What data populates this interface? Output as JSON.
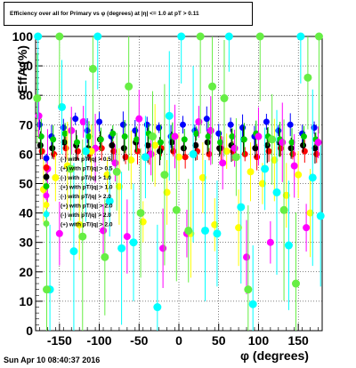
{
  "title_text": "Efficiency over all for Primary vs φ (degrees) at |η| <= 1.0 at pT > 0.11",
  "footer": "Sun Apr 10 08:40:37 2016",
  "chart_data": {
    "type": "scatter",
    "title": "Efficiency over all for Primary vs φ (degrees) at |η| <= 1.0 at pT > 0.11",
    "xlabel": "φ (degrees)",
    "ylabel": "EffA (%)",
    "xlim": [
      -180,
      180
    ],
    "ylim": [
      0,
      100
    ],
    "x_ticks": [
      -150,
      -100,
      -50,
      0,
      50,
      100,
      150
    ],
    "y_ticks": [
      0,
      10,
      20,
      30,
      40,
      50,
      60,
      70,
      80,
      90,
      100
    ],
    "grid": true,
    "legend_position": "left, inside plot",
    "series": [
      {
        "name": "(-) with pT/|q| > 0.5",
        "color": "#0000ff",
        "points": [
          [
            -175,
            70
          ],
          [
            -160,
            66
          ],
          [
            -145,
            69
          ],
          [
            -130,
            72
          ],
          [
            -115,
            68
          ],
          [
            -100,
            71
          ],
          [
            -85,
            66
          ],
          [
            -70,
            70
          ],
          [
            -55,
            68
          ],
          [
            -40,
            70
          ],
          [
            -25,
            69
          ],
          [
            -10,
            66
          ],
          [
            5,
            70
          ],
          [
            20,
            68
          ],
          [
            35,
            72
          ],
          [
            50,
            67
          ],
          [
            65,
            70
          ],
          [
            80,
            69
          ],
          [
            95,
            66
          ],
          [
            110,
            71
          ],
          [
            125,
            68
          ],
          [
            140,
            70
          ],
          [
            155,
            67
          ],
          [
            170,
            69
          ]
        ]
      },
      {
        "name": "(+) with pT/|q| > 0.5",
        "color": "#ff0000",
        "points": [
          [
            -172,
            61
          ],
          [
            -157,
            60
          ],
          [
            -142,
            62
          ],
          [
            -127,
            61
          ],
          [
            -112,
            60
          ],
          [
            -97,
            62
          ],
          [
            -82,
            61
          ],
          [
            -67,
            59
          ],
          [
            -52,
            61
          ],
          [
            -37,
            60
          ],
          [
            -22,
            62
          ],
          [
            -7,
            61
          ],
          [
            8,
            59
          ],
          [
            23,
            61
          ],
          [
            38,
            60
          ],
          [
            53,
            62
          ],
          [
            68,
            61
          ],
          [
            83,
            60
          ],
          [
            98,
            59
          ],
          [
            113,
            61
          ],
          [
            128,
            62
          ],
          [
            143,
            60
          ],
          [
            158,
            61
          ],
          [
            173,
            60
          ]
        ]
      },
      {
        "name": "(-) with pT/|q| > 1.0",
        "color": "#000000",
        "points": [
          [
            -174,
            63
          ],
          [
            -159,
            62
          ],
          [
            -144,
            64
          ],
          [
            -129,
            63
          ],
          [
            -114,
            62
          ],
          [
            -99,
            65
          ],
          [
            -84,
            63
          ],
          [
            -69,
            62
          ],
          [
            -54,
            64
          ],
          [
            -39,
            63
          ],
          [
            -24,
            61
          ],
          [
            -9,
            64
          ],
          [
            6,
            62
          ],
          [
            21,
            63
          ],
          [
            36,
            64
          ],
          [
            51,
            62
          ],
          [
            66,
            63
          ],
          [
            81,
            65
          ],
          [
            96,
            62
          ],
          [
            111,
            63
          ],
          [
            126,
            64
          ],
          [
            141,
            62
          ],
          [
            156,
            63
          ],
          [
            171,
            62
          ]
        ]
      },
      {
        "name": "(+) with pT/|q| > 1.0",
        "color": "#00cc00",
        "points": [
          [
            -173,
            66
          ],
          [
            -158,
            65
          ],
          [
            -143,
            67
          ],
          [
            -128,
            64
          ],
          [
            -113,
            66
          ],
          [
            -98,
            65
          ],
          [
            -83,
            67
          ],
          [
            -68,
            66
          ],
          [
            -53,
            65
          ],
          [
            -38,
            67
          ],
          [
            -23,
            64
          ],
          [
            -8,
            66
          ],
          [
            7,
            65
          ],
          [
            22,
            67
          ],
          [
            37,
            66
          ],
          [
            52,
            64
          ],
          [
            67,
            66
          ],
          [
            82,
            65
          ],
          [
            97,
            67
          ],
          [
            112,
            66
          ],
          [
            127,
            65
          ],
          [
            142,
            64
          ],
          [
            157,
            66
          ],
          [
            172,
            65
          ]
        ]
      },
      {
        "name": "(-) with pT/|q| > 2.0",
        "color": "#ff00ff",
        "points": [
          [
            -176,
            73
          ],
          [
            -165,
            55
          ],
          [
            -150,
            33
          ],
          [
            -135,
            68
          ],
          [
            -120,
            71
          ],
          [
            -105,
            62
          ],
          [
            -95,
            34
          ],
          [
            -80,
            57
          ],
          [
            -65,
            32
          ],
          [
            -50,
            72
          ],
          [
            -35,
            60
          ],
          [
            -20,
            28
          ],
          [
            -5,
            66
          ],
          [
            10,
            33
          ],
          [
            25,
            71
          ],
          [
            40,
            68
          ],
          [
            55,
            57
          ],
          [
            70,
            62
          ],
          [
            85,
            25
          ],
          [
            100,
            66
          ],
          [
            115,
            30
          ],
          [
            130,
            64
          ],
          [
            145,
            56
          ],
          [
            160,
            35
          ],
          [
            175,
            64
          ]
        ]
      },
      {
        "name": "(+) with pT/|q| > 2.0",
        "color": "#ffff00",
        "points": [
          [
            -170,
            48
          ],
          [
            -155,
            52
          ],
          [
            -140,
            56
          ],
          [
            -125,
            36
          ],
          [
            -110,
            61
          ],
          [
            -90,
            53
          ],
          [
            -75,
            49
          ],
          [
            -60,
            58
          ],
          [
            -45,
            37
          ],
          [
            -30,
            63
          ],
          [
            -15,
            47
          ],
          [
            0,
            59
          ],
          [
            15,
            33
          ],
          [
            30,
            52
          ],
          [
            45,
            36
          ],
          [
            60,
            61
          ],
          [
            75,
            35
          ],
          [
            90,
            54
          ],
          [
            105,
            50
          ],
          [
            120,
            58
          ],
          [
            135,
            46
          ],
          [
            150,
            53
          ],
          [
            165,
            40
          ]
        ]
      },
      {
        "name": "(-) with pT/|q| > 2.0",
        "color": "#00ffff",
        "points": [
          [
            -177,
            100
          ],
          [
            -162,
            14
          ],
          [
            -147,
            76
          ],
          [
            -132,
            27
          ],
          [
            -117,
            61
          ],
          [
            -102,
            100
          ],
          [
            -87,
            44
          ],
          [
            -72,
            28
          ],
          [
            -57,
            30
          ],
          [
            -42,
            59
          ],
          [
            -27,
            8
          ],
          [
            -12,
            73
          ],
          [
            3,
            100
          ],
          [
            18,
            60
          ],
          [
            33,
            34
          ],
          [
            48,
            33
          ],
          [
            63,
            100
          ],
          [
            78,
            42
          ],
          [
            93,
            9
          ],
          [
            108,
            55
          ],
          [
            123,
            47
          ],
          [
            138,
            29
          ],
          [
            153,
            100
          ],
          [
            168,
            52
          ],
          [
            178,
            39
          ]
        ]
      },
      {
        "name": "(+) with pT/|q| > 2.0",
        "color": "#66ee44",
        "points": [
          [
            -178,
            79
          ],
          [
            -166,
            14
          ],
          [
            -150,
            100
          ],
          [
            -136,
            55
          ],
          [
            -121,
            32
          ],
          [
            -108,
            89
          ],
          [
            -93,
            25
          ],
          [
            -78,
            54
          ],
          [
            -63,
            83
          ],
          [
            -48,
            40
          ],
          [
            -33,
            66
          ],
          [
            -18,
            53
          ],
          [
            -3,
            41
          ],
          [
            12,
            34
          ],
          [
            27,
            100
          ],
          [
            42,
            83
          ],
          [
            57,
            79
          ],
          [
            72,
            59
          ],
          [
            87,
            14
          ],
          [
            102,
            100
          ],
          [
            117,
            65
          ],
          [
            132,
            41
          ],
          [
            147,
            16
          ],
          [
            162,
            86
          ],
          [
            176,
            100
          ]
        ]
      }
    ]
  }
}
